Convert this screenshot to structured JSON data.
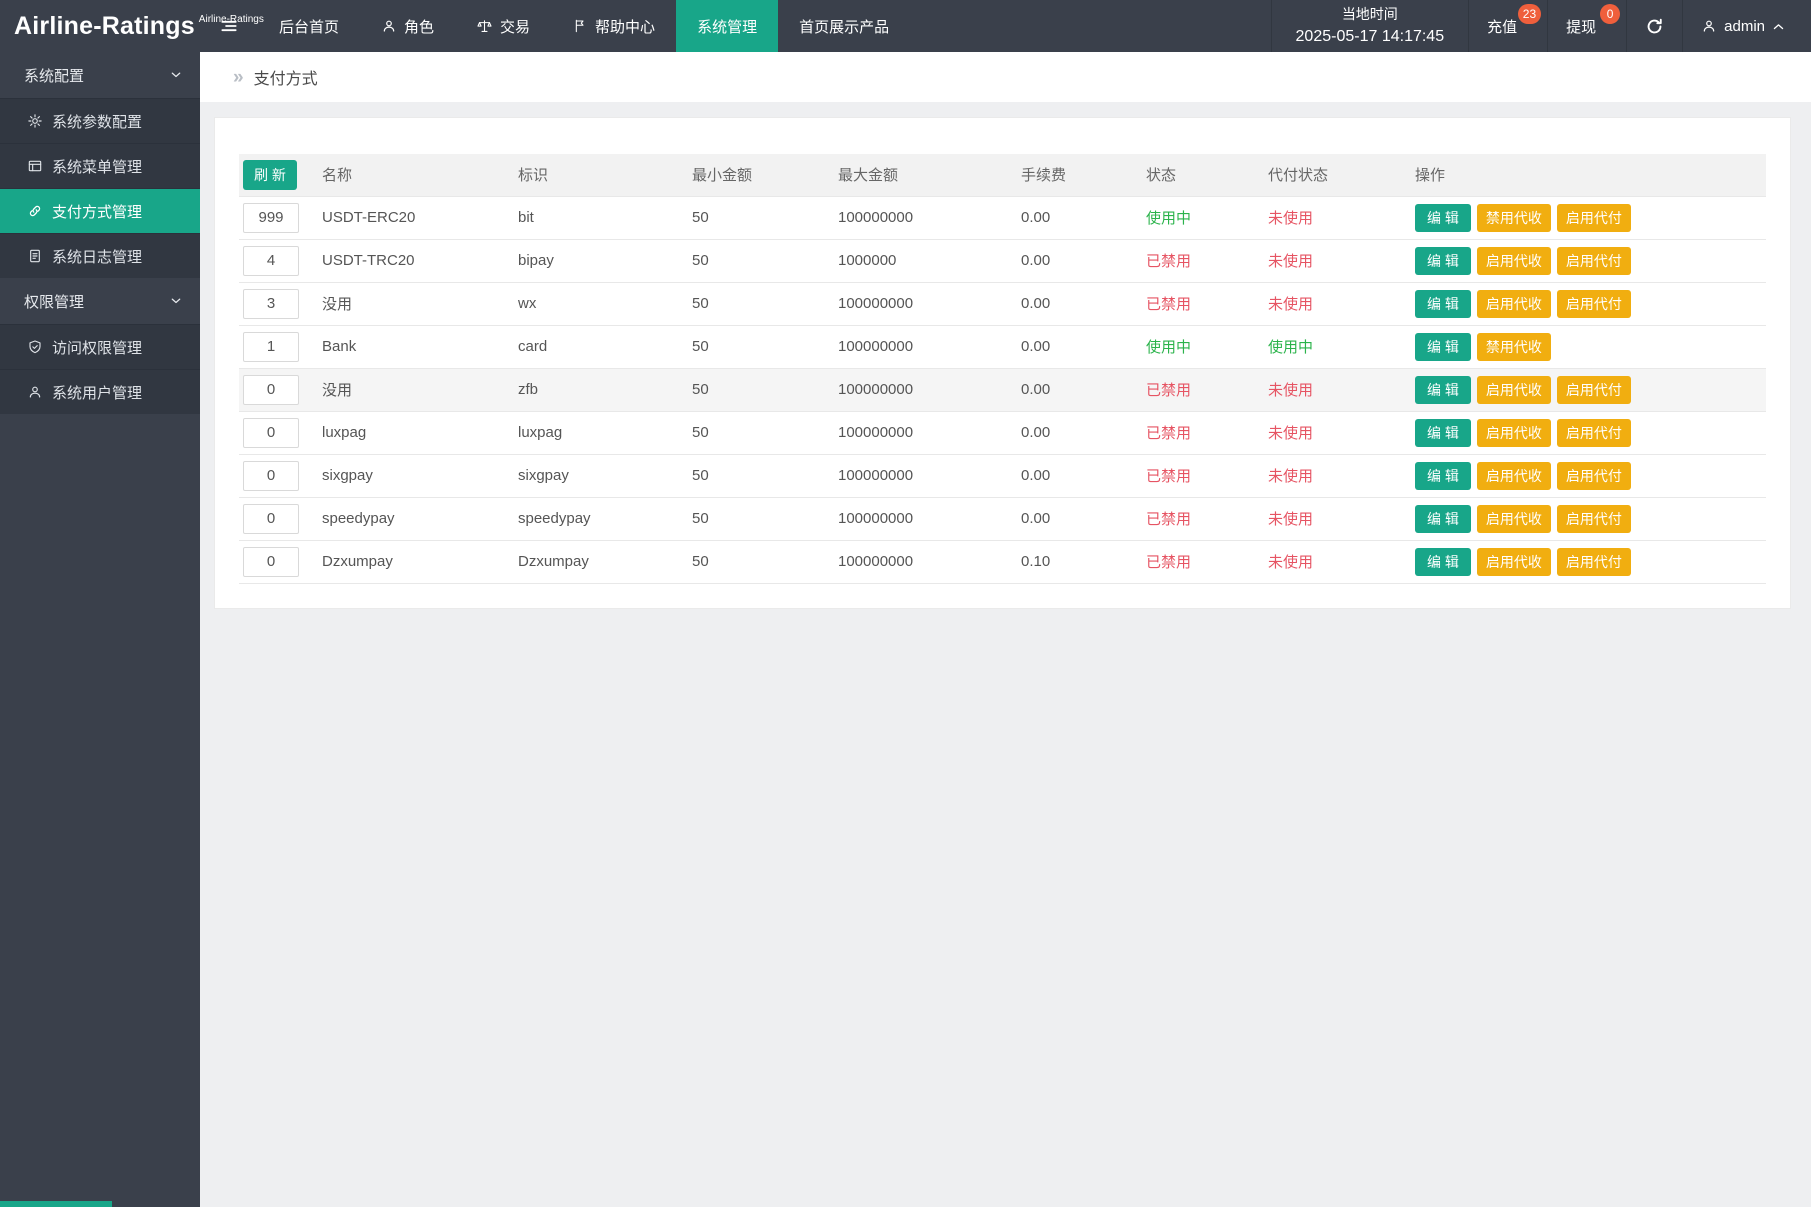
{
  "navbar": {
    "logo": "Airline-Ratings",
    "logo_sup": "Airline-Ratings",
    "items": [
      {
        "label": "后台首页",
        "icon": "none",
        "active": false
      },
      {
        "label": "角色",
        "icon": "person-icon",
        "active": false
      },
      {
        "label": "交易",
        "icon": "scales-icon",
        "active": false
      },
      {
        "label": "帮助中心",
        "icon": "flag-icon",
        "active": false
      },
      {
        "label": "系统管理",
        "icon": "none",
        "active": true
      },
      {
        "label": "首页展示产品",
        "icon": "none",
        "active": false
      }
    ],
    "time": {
      "label": "当地时间",
      "value": "2025-05-17 14:17:45"
    },
    "recharge": {
      "label": "充值",
      "badge": "23"
    },
    "withdraw": {
      "label": "提现",
      "badge": "0"
    },
    "refresh_icon": "refresh-icon",
    "user": {
      "name": "admin",
      "icon": "user-icon",
      "chevron": "chevron-up-icon"
    }
  },
  "sidebar": {
    "sections": [
      {
        "label": "系统配置",
        "chevron": "chevron-down-icon",
        "items": [
          {
            "label": "系统参数配置",
            "icon": "gear-icon",
            "active": false
          },
          {
            "label": "系统菜单管理",
            "icon": "window-menu-icon",
            "active": false
          },
          {
            "label": "支付方式管理",
            "icon": "link-icon",
            "active": true
          },
          {
            "label": "系统日志管理",
            "icon": "log-document-icon",
            "active": false
          }
        ]
      },
      {
        "label": "权限管理",
        "chevron": "chevron-down-icon",
        "items": [
          {
            "label": "访问权限管理",
            "icon": "shield-check-icon",
            "active": false
          },
          {
            "label": "系统用户管理",
            "icon": "person-icon",
            "active": false
          }
        ]
      }
    ]
  },
  "breadcrumb": {
    "caret": "»",
    "label": "支付方式"
  },
  "table": {
    "refresh_label": "刷 新",
    "headers": [
      "名称",
      "标识",
      "最小金额",
      "最大金额",
      "手续费",
      "状态",
      "代付状态",
      "操作"
    ],
    "rows": [
      {
        "sort": "999",
        "name": "USDT-ERC20",
        "code": "bit",
        "min": "50",
        "max": "100000000",
        "fee": "0.00",
        "status": {
          "label": "使用中",
          "state": "on"
        },
        "proxy": {
          "label": "未使用",
          "state": "off"
        },
        "highlight": false,
        "actions": [
          {
            "label": "编 辑",
            "style": "teal",
            "name": "edit-button"
          },
          {
            "label": "禁用代收",
            "style": "yellow",
            "name": "disable-collect-button"
          },
          {
            "label": "启用代付",
            "style": "yellow",
            "name": "enable-payout-button"
          }
        ]
      },
      {
        "sort": "4",
        "name": "USDT-TRC20",
        "code": "bipay",
        "min": "50",
        "max": "1000000",
        "fee": "0.00",
        "status": {
          "label": "已禁用",
          "state": "off"
        },
        "proxy": {
          "label": "未使用",
          "state": "off"
        },
        "highlight": false,
        "actions": [
          {
            "label": "编 辑",
            "style": "teal",
            "name": "edit-button"
          },
          {
            "label": "启用代收",
            "style": "yellow",
            "name": "enable-collect-button"
          },
          {
            "label": "启用代付",
            "style": "yellow",
            "name": "enable-payout-button"
          }
        ]
      },
      {
        "sort": "3",
        "name": "没用",
        "code": "wx",
        "min": "50",
        "max": "100000000",
        "fee": "0.00",
        "status": {
          "label": "已禁用",
          "state": "off"
        },
        "proxy": {
          "label": "未使用",
          "state": "off"
        },
        "highlight": false,
        "actions": [
          {
            "label": "编 辑",
            "style": "teal",
            "name": "edit-button"
          },
          {
            "label": "启用代收",
            "style": "yellow",
            "name": "enable-collect-button"
          },
          {
            "label": "启用代付",
            "style": "yellow",
            "name": "enable-payout-button"
          }
        ]
      },
      {
        "sort": "1",
        "name": "Bank",
        "code": "card",
        "min": "50",
        "max": "100000000",
        "fee": "0.00",
        "status": {
          "label": "使用中",
          "state": "on"
        },
        "proxy": {
          "label": "使用中",
          "state": "on"
        },
        "highlight": false,
        "actions": [
          {
            "label": "编 辑",
            "style": "teal",
            "name": "edit-button"
          },
          {
            "label": "禁用代收",
            "style": "yellow",
            "name": "disable-collect-button"
          }
        ]
      },
      {
        "sort": "0",
        "name": "没用",
        "code": "zfb",
        "min": "50",
        "max": "100000000",
        "fee": "0.00",
        "status": {
          "label": "已禁用",
          "state": "off"
        },
        "proxy": {
          "label": "未使用",
          "state": "off"
        },
        "highlight": true,
        "actions": [
          {
            "label": "编 辑",
            "style": "teal",
            "name": "edit-button"
          },
          {
            "label": "启用代收",
            "style": "yellow",
            "name": "enable-collect-button"
          },
          {
            "label": "启用代付",
            "style": "yellow",
            "name": "enable-payout-button"
          }
        ]
      },
      {
        "sort": "0",
        "name": "luxpag",
        "code": "luxpag",
        "min": "50",
        "max": "100000000",
        "fee": "0.00",
        "status": {
          "label": "已禁用",
          "state": "off"
        },
        "proxy": {
          "label": "未使用",
          "state": "off"
        },
        "highlight": false,
        "actions": [
          {
            "label": "编 辑",
            "style": "teal",
            "name": "edit-button"
          },
          {
            "label": "启用代收",
            "style": "yellow",
            "name": "enable-collect-button"
          },
          {
            "label": "启用代付",
            "style": "yellow",
            "name": "enable-payout-button"
          }
        ]
      },
      {
        "sort": "0",
        "name": "sixgpay",
        "code": "sixgpay",
        "min": "50",
        "max": "100000000",
        "fee": "0.00",
        "status": {
          "label": "已禁用",
          "state": "off"
        },
        "proxy": {
          "label": "未使用",
          "state": "off"
        },
        "highlight": false,
        "actions": [
          {
            "label": "编 辑",
            "style": "teal",
            "name": "edit-button"
          },
          {
            "label": "启用代收",
            "style": "yellow",
            "name": "enable-collect-button"
          },
          {
            "label": "启用代付",
            "style": "yellow",
            "name": "enable-payout-button"
          }
        ]
      },
      {
        "sort": "0",
        "name": "speedypay",
        "code": "speedypay",
        "min": "50",
        "max": "100000000",
        "fee": "0.00",
        "status": {
          "label": "已禁用",
          "state": "off"
        },
        "proxy": {
          "label": "未使用",
          "state": "off"
        },
        "highlight": false,
        "actions": [
          {
            "label": "编 辑",
            "style": "teal",
            "name": "edit-button"
          },
          {
            "label": "启用代收",
            "style": "yellow",
            "name": "enable-collect-button"
          },
          {
            "label": "启用代付",
            "style": "yellow",
            "name": "enable-payout-button"
          }
        ]
      },
      {
        "sort": "0",
        "name": "Dzxumpay",
        "code": "Dzxumpay",
        "min": "50",
        "max": "100000000",
        "fee": "0.10",
        "status": {
          "label": "已禁用",
          "state": "off"
        },
        "proxy": {
          "label": "未使用",
          "state": "off"
        },
        "highlight": false,
        "actions": [
          {
            "label": "编 辑",
            "style": "teal",
            "name": "edit-button"
          },
          {
            "label": "启用代收",
            "style": "yellow",
            "name": "enable-collect-button"
          },
          {
            "label": "启用代付",
            "style": "yellow",
            "name": "enable-payout-button"
          }
        ]
      }
    ]
  },
  "colors": {
    "accent_teal": "#18A689",
    "warn_yellow": "#F1AE10",
    "danger_red": "#E65463",
    "success_green": "#2BB34B",
    "badge_orange": "#EF5F3C",
    "navbar_dark": "#3A404B",
    "sidebar_item_dark": "#313741",
    "content_bg": "#EEEFF1"
  }
}
